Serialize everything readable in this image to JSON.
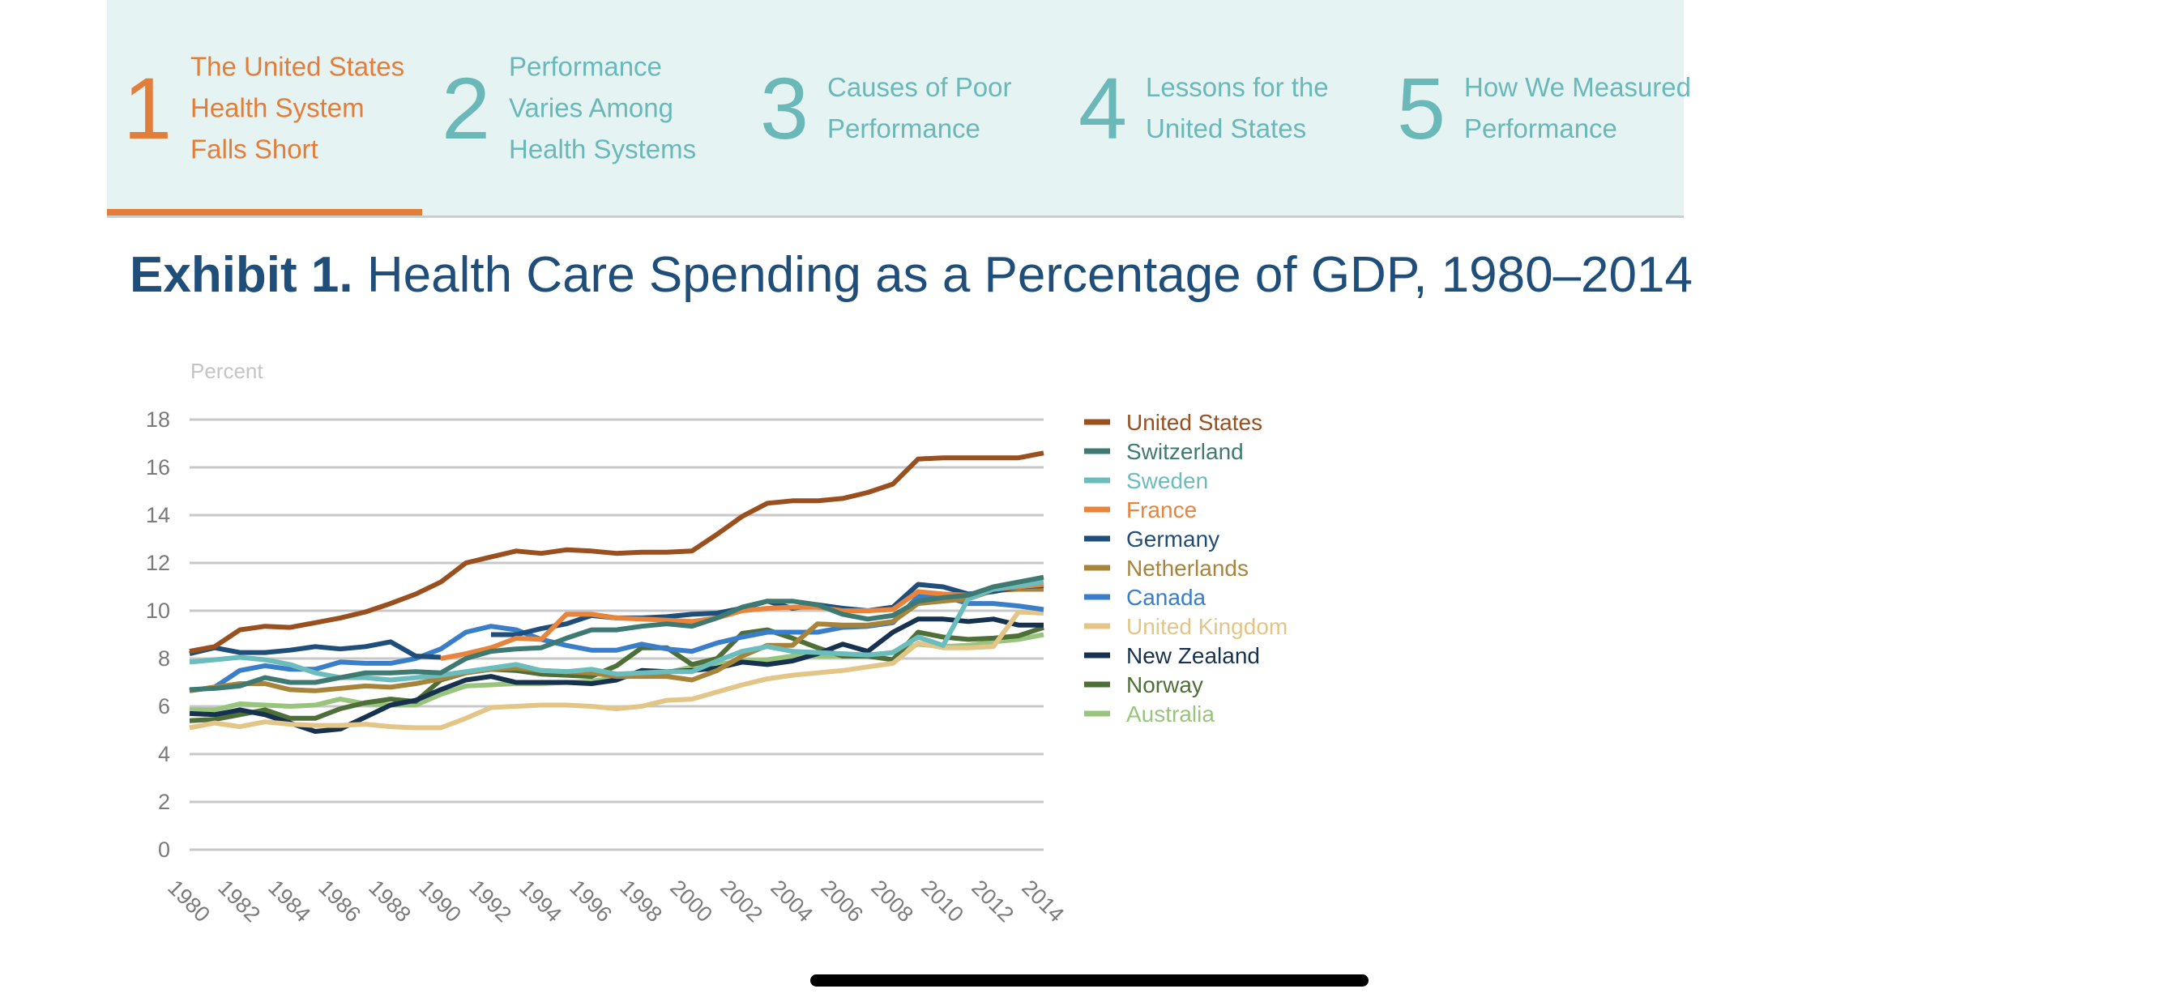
{
  "nav": {
    "tabs": [
      {
        "number": "1",
        "label": "The United States Health System Falls Short",
        "active": true
      },
      {
        "number": "2",
        "label": "Performance Varies Among Health Systems",
        "active": false
      },
      {
        "number": "3",
        "label": "Causes of Poor Performance",
        "active": false
      },
      {
        "number": "4",
        "label": "Lessons for the United States",
        "active": false
      },
      {
        "number": "5",
        "label": "How We Measured Performance",
        "active": false
      }
    ],
    "colors": {
      "active": "#e27e3a",
      "inactive": "#6ab8b8",
      "background": "#e6f3f3"
    }
  },
  "exhibit": {
    "label": "Exhibit 1.",
    "title": "Health Care Spending as a Percentage of GDP, 1980–2014"
  },
  "chart_data": {
    "type": "line",
    "title": "Health Care Spending as a Percentage of GDP, 1980–2014",
    "xlabel": "",
    "ylabel": "Percent",
    "ylim": [
      0,
      18
    ],
    "yticks": [
      0,
      2,
      4,
      6,
      8,
      10,
      12,
      14,
      16,
      18
    ],
    "grid": true,
    "legend": "right",
    "x": [
      1980,
      1981,
      1982,
      1983,
      1984,
      1985,
      1986,
      1987,
      1988,
      1989,
      1990,
      1991,
      1992,
      1993,
      1994,
      1995,
      1996,
      1997,
      1998,
      1999,
      2000,
      2001,
      2002,
      2003,
      2004,
      2005,
      2006,
      2007,
      2008,
      2009,
      2010,
      2011,
      2012,
      2013,
      2014
    ],
    "xtick_labels": [
      "1980",
      "1982",
      "1984",
      "1986",
      "1988",
      "1990",
      "1992",
      "1994",
      "1996",
      "1998",
      "2000",
      "2002",
      "2004",
      "2006",
      "2008",
      "2010",
      "2012",
      "2014"
    ],
    "series": [
      {
        "name": "United States",
        "color": "#9a4f1e",
        "values": [
          8.3,
          8.5,
          9.2,
          9.35,
          9.3,
          9.5,
          9.7,
          9.95,
          10.3,
          10.7,
          11.2,
          12.0,
          12.25,
          12.5,
          12.4,
          12.55,
          12.5,
          12.4,
          12.45,
          12.45,
          12.5,
          13.2,
          13.95,
          14.5,
          14.6,
          14.6,
          14.7,
          14.95,
          15.3,
          16.35,
          16.4,
          16.4,
          16.4,
          16.4,
          16.6
        ]
      },
      {
        "name": "Switzerland",
        "color": "#3e7a72",
        "values": [
          6.7,
          6.75,
          6.85,
          7.2,
          7.0,
          7.0,
          7.2,
          7.4,
          7.4,
          7.45,
          7.4,
          8.0,
          8.3,
          8.4,
          8.45,
          8.85,
          9.2,
          9.2,
          9.35,
          9.45,
          9.35,
          9.7,
          10.15,
          10.4,
          10.4,
          10.25,
          9.85,
          9.65,
          9.8,
          10.4,
          10.55,
          10.65,
          11.0,
          11.2,
          11.4
        ]
      },
      {
        "name": "Sweden",
        "color": "#6bbcbc",
        "values": [
          7.85,
          7.95,
          8.05,
          7.95,
          7.75,
          7.4,
          7.2,
          7.2,
          7.1,
          7.2,
          7.3,
          7.45,
          7.6,
          7.75,
          7.5,
          7.45,
          7.55,
          7.35,
          7.4,
          7.45,
          7.45,
          7.9,
          8.3,
          8.5,
          8.3,
          8.25,
          8.2,
          8.15,
          8.25,
          8.9,
          8.55,
          10.5,
          10.9,
          11.05,
          11.2
        ]
      },
      {
        "name": "France",
        "color": "#e8843c",
        "values": [
          null,
          null,
          null,
          null,
          null,
          null,
          null,
          null,
          null,
          null,
          8.0,
          8.2,
          8.45,
          8.85,
          8.8,
          9.85,
          9.85,
          9.7,
          9.65,
          9.6,
          9.55,
          9.7,
          10.0,
          10.1,
          10.15,
          10.15,
          10.0,
          10.0,
          10.05,
          10.8,
          10.7,
          10.65,
          10.9,
          11.0,
          11.1
        ]
      },
      {
        "name": "Germany",
        "color": "#1f4e7a",
        "values": [
          8.2,
          8.45,
          8.25,
          8.25,
          8.35,
          8.5,
          8.4,
          8.5,
          8.7,
          8.1,
          8.05,
          null,
          9.0,
          9.0,
          9.25,
          9.45,
          9.8,
          9.7,
          9.7,
          9.75,
          9.85,
          9.9,
          10.1,
          10.4,
          10.1,
          10.25,
          10.1,
          10.0,
          10.15,
          11.1,
          11.0,
          10.7,
          10.8,
          11.0,
          11.05
        ]
      },
      {
        "name": "Netherlands",
        "color": "#a8843a",
        "values": [
          6.65,
          6.8,
          6.95,
          6.95,
          6.7,
          6.65,
          6.75,
          6.85,
          6.8,
          6.95,
          7.15,
          7.4,
          7.55,
          7.6,
          7.5,
          7.45,
          7.4,
          7.25,
          7.25,
          7.25,
          7.1,
          7.5,
          8.1,
          8.55,
          8.55,
          9.45,
          9.4,
          9.4,
          9.55,
          10.3,
          10.4,
          10.5,
          10.85,
          10.9,
          10.9
        ]
      },
      {
        "name": "Canada",
        "color": "#3a7dc9",
        "values": [
          6.65,
          6.8,
          7.5,
          7.7,
          7.55,
          7.55,
          7.85,
          7.8,
          7.8,
          8.0,
          8.4,
          9.1,
          9.35,
          9.2,
          8.8,
          8.55,
          8.35,
          8.35,
          8.6,
          8.4,
          8.3,
          8.65,
          8.9,
          9.1,
          9.1,
          9.1,
          9.3,
          9.35,
          9.5,
          10.6,
          10.6,
          10.3,
          10.3,
          10.2,
          10.05
        ]
      },
      {
        "name": "United Kingdom",
        "color": "#e3c587",
        "values": [
          5.1,
          5.3,
          5.15,
          5.35,
          5.25,
          5.2,
          5.2,
          5.25,
          5.15,
          5.1,
          5.1,
          5.5,
          5.95,
          6.0,
          6.05,
          6.05,
          6.0,
          5.9,
          6.0,
          6.25,
          6.3,
          6.6,
          6.9,
          7.15,
          7.3,
          7.4,
          7.5,
          7.65,
          7.8,
          8.65,
          8.45,
          8.45,
          8.5,
          9.95,
          9.9
        ]
      },
      {
        "name": "New Zealand",
        "color": "#17324f",
        "values": [
          5.7,
          5.65,
          5.85,
          5.65,
          5.3,
          4.95,
          5.05,
          5.55,
          6.05,
          6.25,
          6.7,
          7.1,
          7.25,
          7.0,
          7.0,
          7.0,
          6.95,
          7.1,
          7.5,
          7.45,
          7.5,
          7.6,
          7.85,
          7.75,
          7.9,
          8.2,
          8.6,
          8.3,
          9.1,
          9.65,
          9.65,
          9.55,
          9.65,
          9.4,
          9.4
        ]
      },
      {
        "name": "Norway",
        "color": "#4e7038",
        "values": [
          5.4,
          5.45,
          5.65,
          5.85,
          5.5,
          5.5,
          5.9,
          6.15,
          6.3,
          6.2,
          7.1,
          7.4,
          7.55,
          7.5,
          7.35,
          7.3,
          7.25,
          7.7,
          8.45,
          8.45,
          7.75,
          8.0,
          9.05,
          9.2,
          8.85,
          8.45,
          8.1,
          8.1,
          7.95,
          9.1,
          8.9,
          8.8,
          8.85,
          8.95,
          9.3
        ]
      },
      {
        "name": "Australia",
        "color": "#99c47d",
        "values": [
          5.85,
          5.85,
          6.1,
          6.05,
          6.0,
          6.05,
          6.3,
          6.1,
          6.05,
          6.05,
          6.5,
          6.85,
          6.9,
          6.95,
          6.95,
          7.0,
          7.05,
          7.2,
          7.3,
          7.4,
          7.65,
          7.75,
          7.9,
          7.95,
          8.1,
          8.1,
          8.1,
          8.1,
          8.25,
          8.6,
          8.5,
          8.55,
          8.7,
          8.8,
          9.0
        ]
      }
    ]
  }
}
